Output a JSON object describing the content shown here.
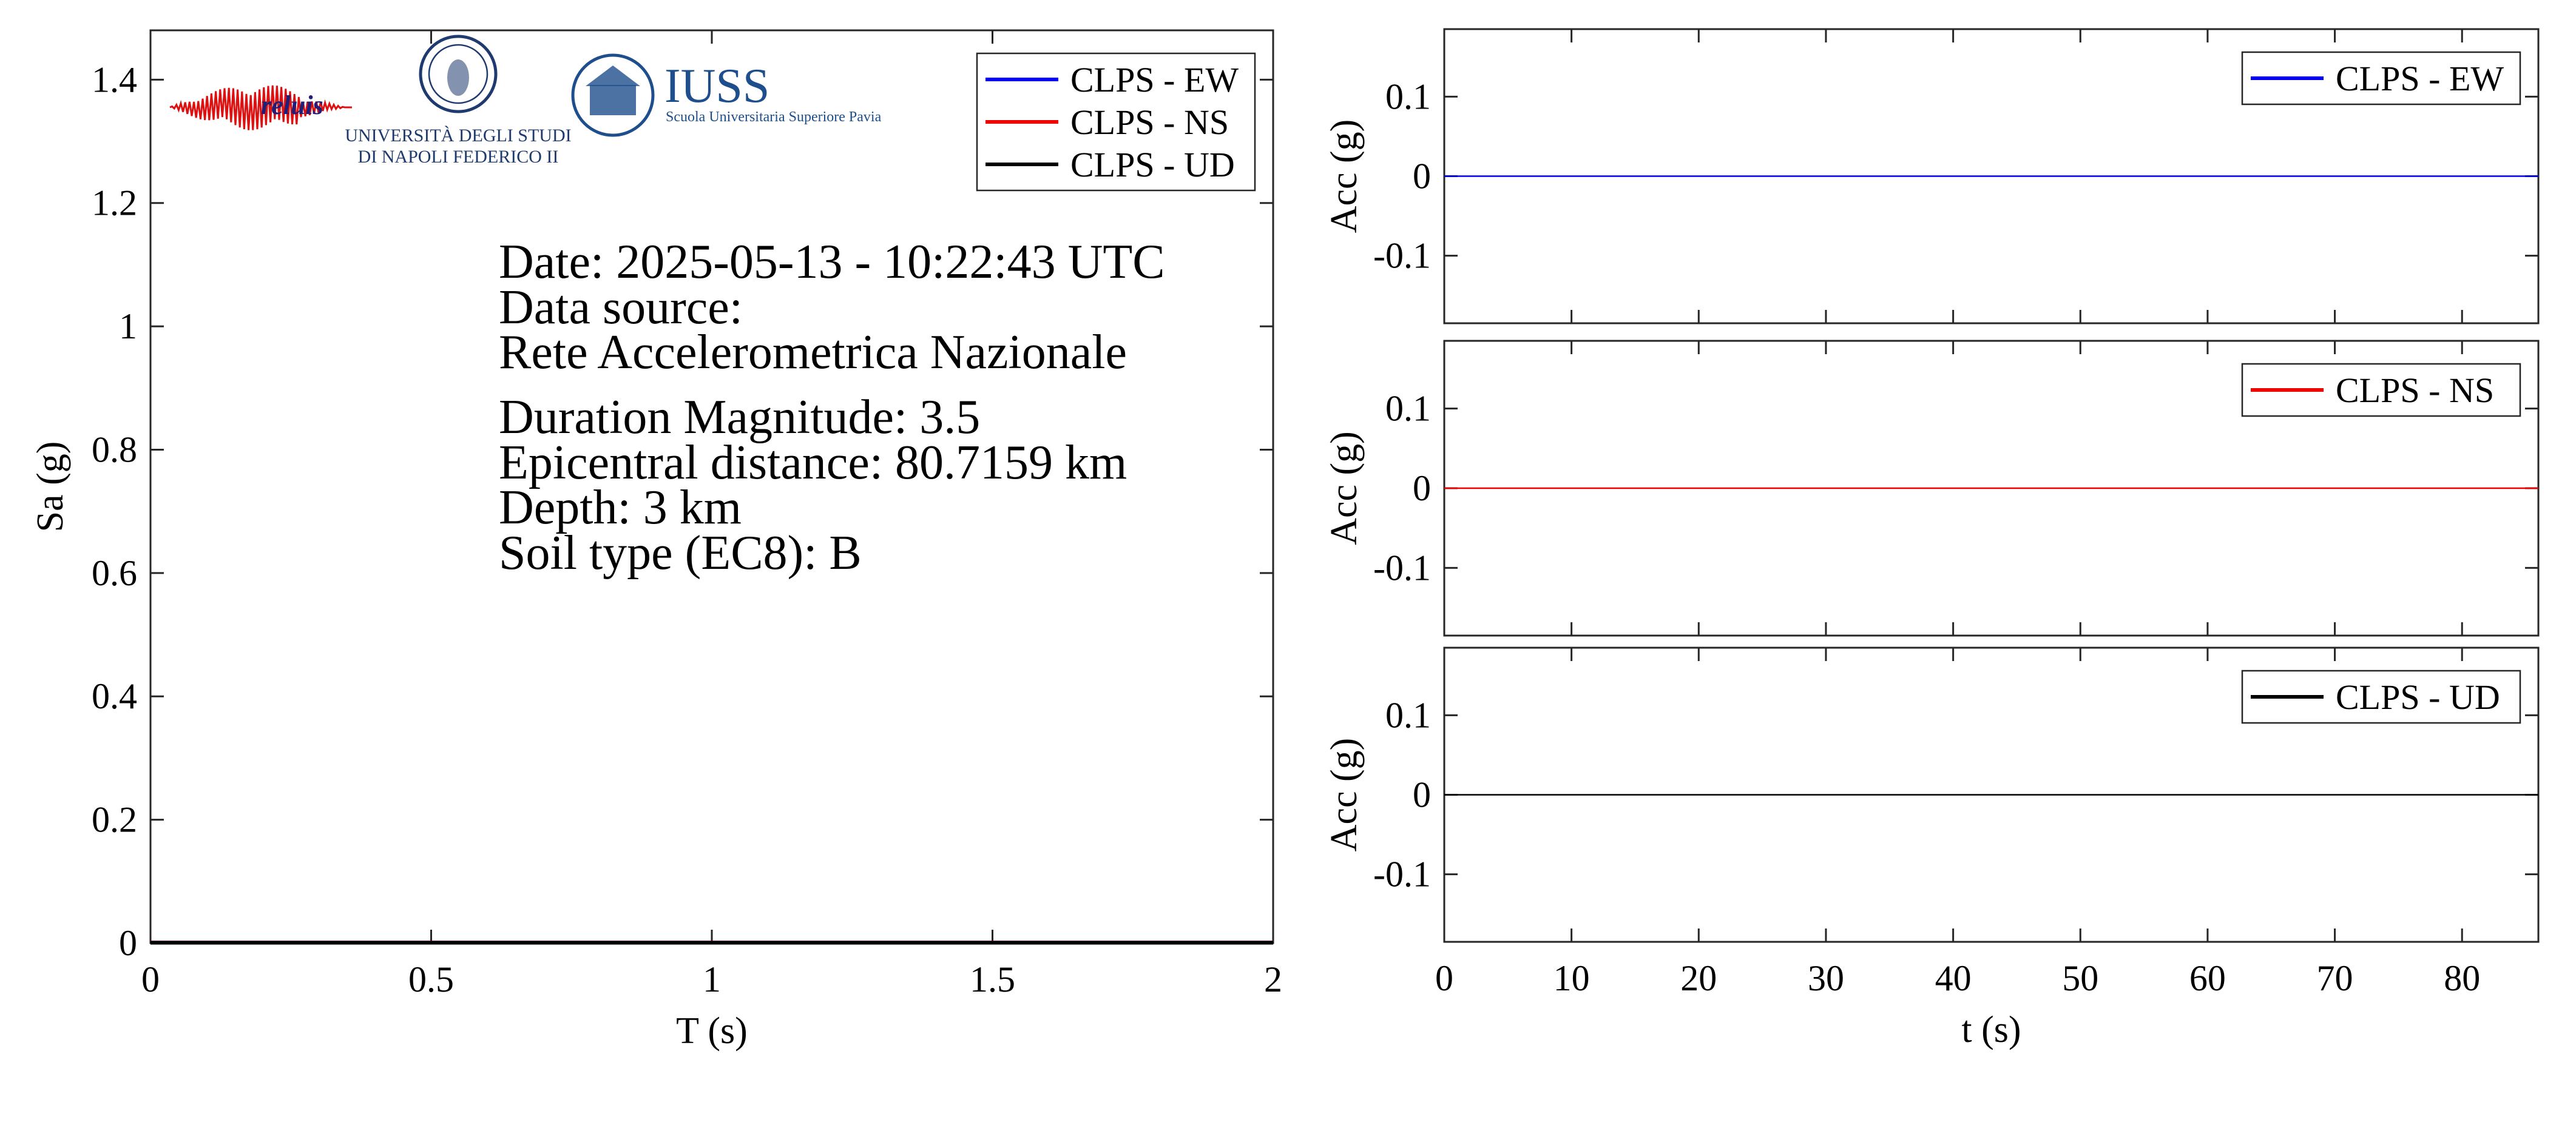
{
  "chart_data": [
    {
      "type": "line",
      "name": "response-spectrum",
      "xlabel": "T (s)",
      "ylabel": "Sa (g)",
      "xlim": [
        0,
        2
      ],
      "ylim": [
        0,
        1.48
      ],
      "xticks": [
        0,
        0.5,
        1,
        1.5,
        2
      ],
      "xtick_labels": [
        "0",
        "0.5",
        "1",
        "1.5",
        "2"
      ],
      "yticks": [
        0,
        0.2,
        0.4,
        0.6,
        0.8,
        1,
        1.2,
        1.4
      ],
      "ytick_labels": [
        "0",
        "0.2",
        "0.4",
        "0.6",
        "0.8",
        "1",
        "1.2",
        "1.4"
      ],
      "legend_position": "top-right",
      "series": [
        {
          "name": "CLPS - EW",
          "color": "#0000ee",
          "x": [
            0,
            2
          ],
          "y": [
            0.001,
            0.001
          ]
        },
        {
          "name": "CLPS - NS",
          "color": "#ee0000",
          "x": [
            0,
            2
          ],
          "y": [
            0.0008,
            0.0008
          ]
        },
        {
          "name": "CLPS - UD",
          "color": "#000000",
          "x": [
            0,
            2
          ],
          "y": [
            0.0005,
            0.0005
          ]
        }
      ],
      "annotations": [
        "Date: 2025-05-13 - 10:22:43 UTC",
        "Data source:",
        "Rete Accelerometrica Nazionale",
        "Duration Magnitude: 3.5",
        "Epicentral distance: 80.7159 km",
        "Depth: 3 km",
        "Soil type (EC8): B"
      ],
      "logos": {
        "reluis": {
          "text": "reluis",
          "color": "#1f1f7a",
          "wave_color": "#dd1111"
        },
        "unina": {
          "line1": "UNIVERSITÀ DEGLI STUDI",
          "line2": "DI NAPOLI FEDERICO II",
          "color": "#1e3a6e"
        },
        "iuss": {
          "title": "IUSS",
          "subtitle": "Scuola Universitaria Superiore Pavia",
          "color": "#1e4f8c"
        }
      }
    },
    {
      "type": "line",
      "name": "acc-ew",
      "xlabel": "",
      "ylabel": "Acc (g)",
      "xlim": [
        0,
        86
      ],
      "ylim": [
        -0.185,
        0.185
      ],
      "yticks": [
        -0.1,
        0,
        0.1
      ],
      "ytick_labels": [
        "-0.1",
        "0",
        "0.1"
      ],
      "legend_position": "top-right",
      "series": [
        {
          "name": "CLPS - EW",
          "color": "#0000ee",
          "x": [
            0,
            86
          ],
          "y": [
            0,
            0
          ]
        }
      ]
    },
    {
      "type": "line",
      "name": "acc-ns",
      "xlabel": "",
      "ylabel": "Acc (g)",
      "xlim": [
        0,
        86
      ],
      "ylim": [
        -0.185,
        0.185
      ],
      "yticks": [
        -0.1,
        0,
        0.1
      ],
      "ytick_labels": [
        "-0.1",
        "0",
        "0.1"
      ],
      "legend_position": "top-right",
      "series": [
        {
          "name": "CLPS - NS",
          "color": "#ee0000",
          "x": [
            0,
            86
          ],
          "y": [
            0,
            0
          ]
        }
      ]
    },
    {
      "type": "line",
      "name": "acc-ud",
      "xlabel": "t (s)",
      "ylabel": "Acc (g)",
      "xlim": [
        0,
        86
      ],
      "ylim": [
        -0.185,
        0.185
      ],
      "xticks": [
        0,
        10,
        20,
        30,
        40,
        50,
        60,
        70,
        80
      ],
      "xtick_labels": [
        "0",
        "10",
        "20",
        "30",
        "40",
        "50",
        "60",
        "70",
        "80"
      ],
      "yticks": [
        -0.1,
        0,
        0.1
      ],
      "ytick_labels": [
        "-0.1",
        "0",
        "0.1"
      ],
      "legend_position": "top-right",
      "series": [
        {
          "name": "CLPS - UD",
          "color": "#000000",
          "x": [
            0,
            86
          ],
          "y": [
            0,
            0
          ]
        }
      ]
    }
  ]
}
